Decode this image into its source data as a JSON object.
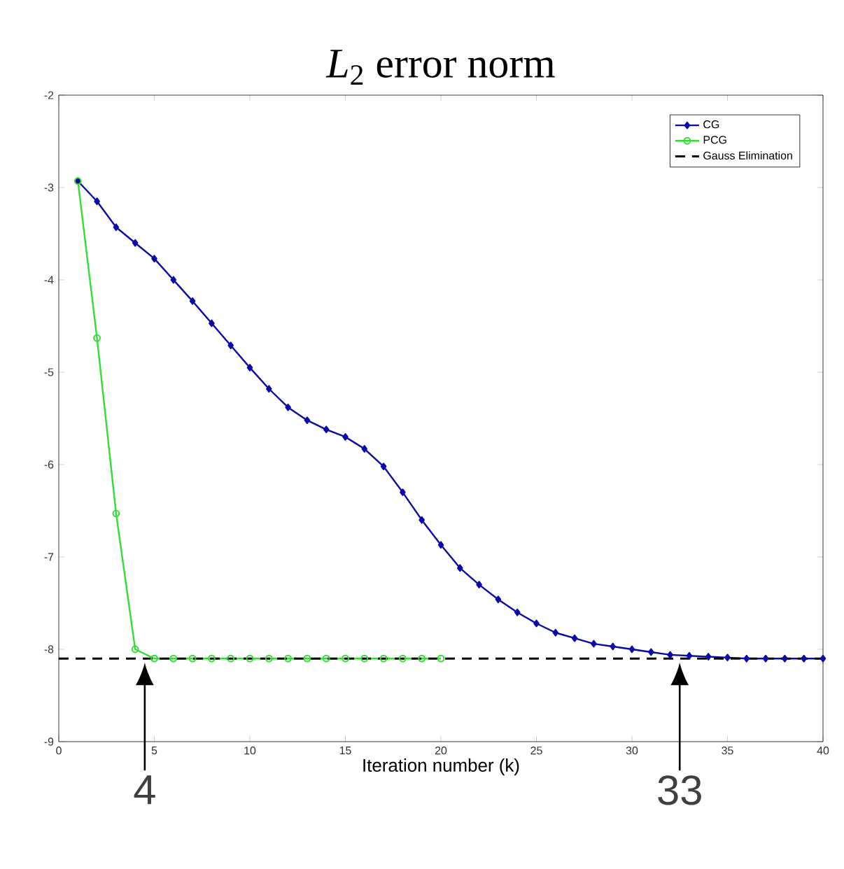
{
  "chart_data": {
    "type": "line",
    "title": "*L*$_{2}$ error norm",
    "xlabel": "Iteration number (k)",
    "xlim": [
      0,
      40
    ],
    "xticks": [
      0,
      5,
      10,
      15,
      20,
      25,
      30,
      35,
      40
    ],
    "ylim": [
      -9,
      -2
    ],
    "yticks": [
      -9,
      -8,
      -7,
      -6,
      -5,
      -4,
      -3,
      -2
    ],
    "legend": "top right",
    "grid": false,
    "series": [
      {
        "name": "CG",
        "color": "#0a0aa8",
        "marker": "diamond",
        "x": [
          1,
          2,
          3,
          4,
          5,
          6,
          7,
          8,
          9,
          10,
          11,
          12,
          13,
          14,
          15,
          16,
          17,
          18,
          19,
          20,
          21,
          22,
          23,
          24,
          25,
          26,
          27,
          28,
          29,
          30,
          31,
          32,
          33,
          34,
          35,
          36,
          37,
          38,
          39,
          40
        ],
        "values": [
          -2.93,
          -3.15,
          -3.43,
          -3.6,
          -3.77,
          -4.0,
          -4.23,
          -4.47,
          -4.71,
          -4.95,
          -5.18,
          -5.38,
          -5.52,
          -5.62,
          -5.7,
          -5.83,
          -6.02,
          -6.3,
          -6.6,
          -6.87,
          -7.12,
          -7.3,
          -7.46,
          -7.6,
          -7.72,
          -7.82,
          -7.88,
          -7.94,
          -7.97,
          -8.0,
          -8.03,
          -8.06,
          -8.07,
          -8.08,
          -8.09,
          -8.1,
          -8.1,
          -8.1,
          -8.1,
          -8.1
        ]
      },
      {
        "name": "PCG",
        "color": "#33dd33",
        "marker": "circle",
        "x": [
          1,
          2,
          3,
          4,
          5,
          6,
          7,
          8,
          9,
          10,
          11,
          12,
          13,
          14,
          15,
          16,
          17,
          18,
          19,
          20
        ],
        "values": [
          -2.93,
          -4.63,
          -6.53,
          -8.0,
          -8.1,
          -8.1,
          -8.1,
          -8.1,
          -8.1,
          -8.1,
          -8.1,
          -8.1,
          -8.1,
          -8.1,
          -8.1,
          -8.1,
          -8.1,
          -8.1,
          -8.1,
          -8.1
        ]
      }
    ],
    "ref_lines": [
      {
        "axis": "y",
        "value": -8.1,
        "label": "Gauss Elimination",
        "color": "#000000",
        "line_style": "dashed"
      }
    ],
    "annotations": [
      {
        "text": "4",
        "x": 4.5,
        "y": -8.1
      },
      {
        "text": "33",
        "x": 32.5,
        "y": -8.1
      }
    ]
  }
}
